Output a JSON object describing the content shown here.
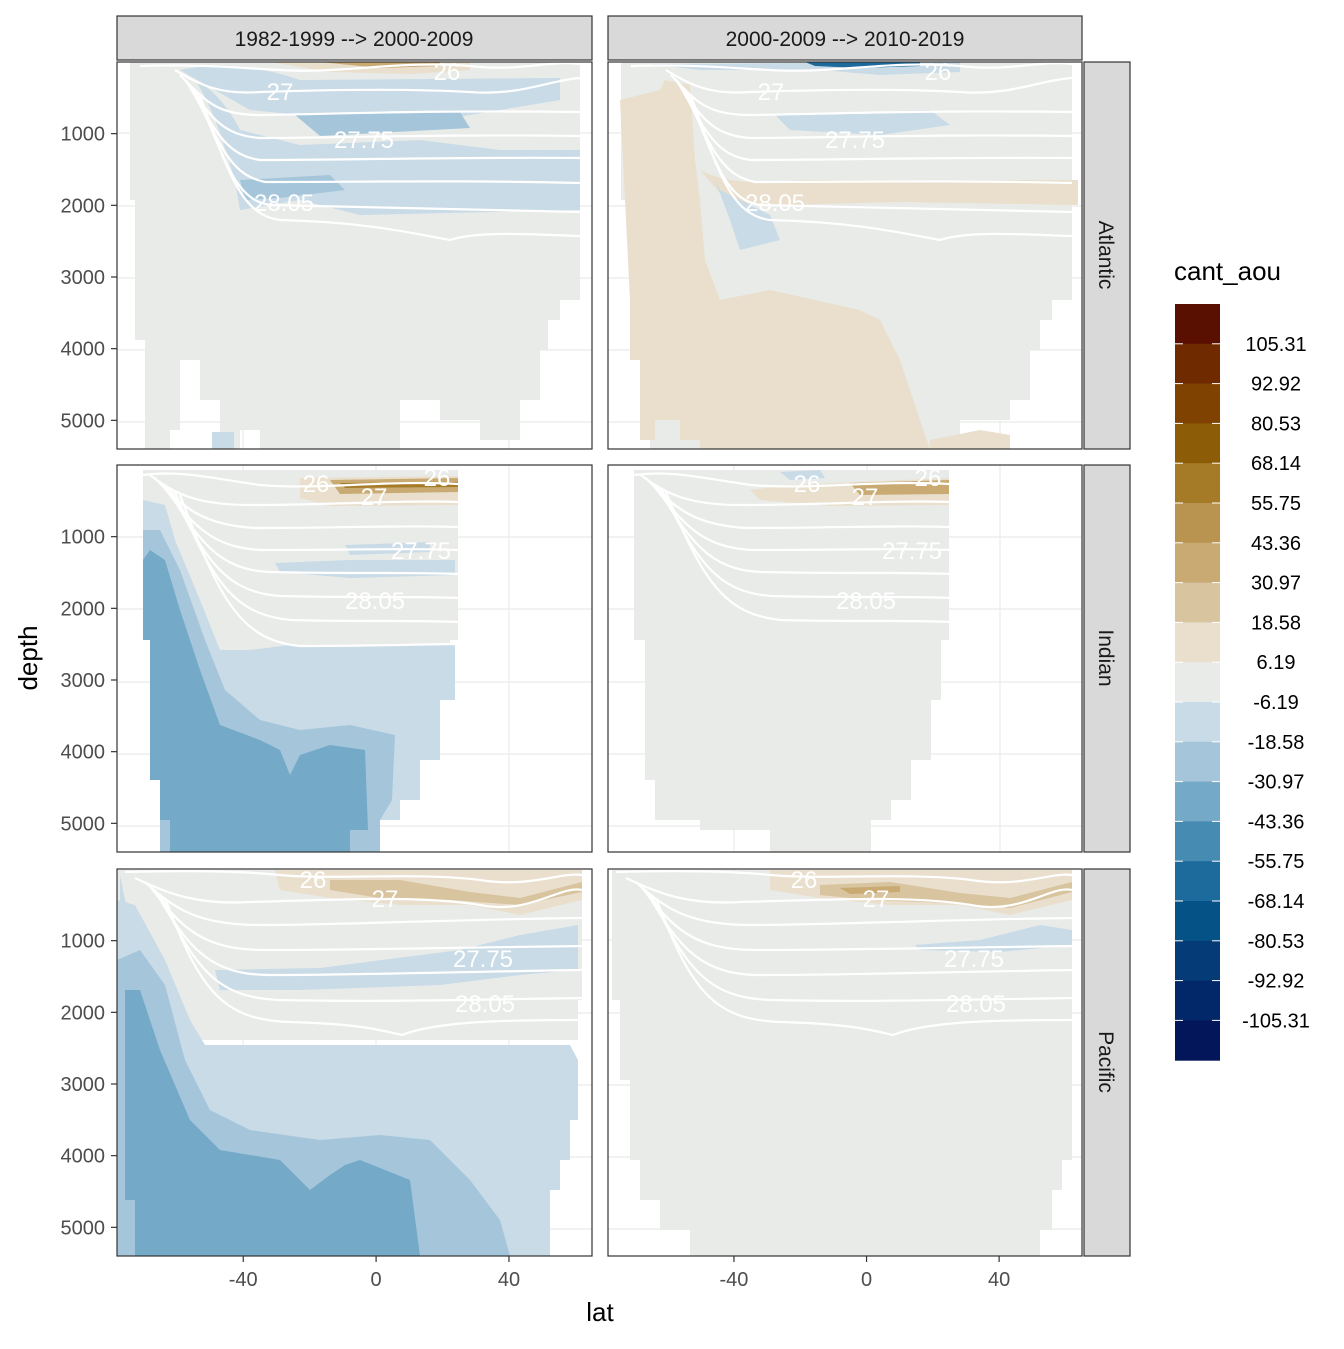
{
  "chart_data": {
    "type": "heatmap",
    "subtype": "faceted ocean section contour plot",
    "xlabel": "lat",
    "ylabel": "depth",
    "x_ticks": [
      -40,
      0,
      40
    ],
    "y_ticks": [
      1000,
      2000,
      3000,
      4000,
      5000
    ],
    "xlim": [
      -78,
      65
    ],
    "ylim": [
      5400,
      0
    ],
    "y_reversed": true,
    "column_facets": [
      "1982-1999 --> 2000-2009",
      "2000-2009 --> 2010-2019"
    ],
    "row_facets": [
      "Atlantic",
      "Indian",
      "Pacific"
    ],
    "legend": {
      "title": "cant_aou",
      "position": "right",
      "breaks": [
        "105.31",
        "92.92",
        "80.53",
        "68.14",
        "55.75",
        "43.36",
        "30.97",
        "18.58",
        "6.19",
        "-6.19",
        "-18.58",
        "-30.97",
        "-43.36",
        "-55.75",
        "-68.14",
        "-80.53",
        "-92.92",
        "-105.31"
      ],
      "colors": [
        "#5a1000",
        "#6f2a00",
        "#7f4200",
        "#8d5c06",
        "#a67b28",
        "#b99450",
        "#c8aa72",
        "#d8c49e",
        "#e9dfcc",
        "#e9ebe8",
        "#c8dbe7",
        "#a5c6da",
        "#74a9c8",
        "#468bb2",
        "#1d6a9d",
        "#055287",
        "#053c78",
        "#02286a",
        "#021659"
      ]
    },
    "density_contours": [
      "26",
      "27",
      "27.75",
      "28.05"
    ],
    "panels": [
      {
        "basin": "Atlantic",
        "period": "1982-1999 --> 2000-2009",
        "contour_labels": [
          "27",
          "26",
          "27.75",
          "28.05"
        ],
        "dominant_class": "-6.19 to 6.19",
        "features": "negative layers (-18.58 to -6.19) at 500-2200 m from 55S to 60N; positive 6.19-30.97 near surface 20S-20N"
      },
      {
        "basin": "Atlantic",
        "period": "2000-2009 --> 2010-2019",
        "contour_labels": [
          "27",
          "26",
          "27.75",
          "28.05"
        ],
        "dominant_class": "6.19 to 18.58",
        "features": "positive 6.19-18.58 in deep southern Atlantic and 1600-2000 m band; negative near surface 15S-20N"
      },
      {
        "basin": "Indian",
        "period": "1982-1999 --> 2000-2009",
        "contour_labels": [
          "26",
          "27",
          "26",
          "27.75",
          "28.05"
        ],
        "dominant_class": "-43.36 to -30.97",
        "features": "strong negative in deep Southern Ocean below 1000 m; positive 18.58-55.75 near surface 10S-25N"
      },
      {
        "basin": "Indian",
        "period": "2000-2009 --> 2010-2019",
        "contour_labels": [
          "26",
          "27",
          "26",
          "27.75",
          "28.05"
        ],
        "dominant_class": "-6.19 to 6.19",
        "features": "weak positive 6.19-30.97 near surface 20S-25N"
      },
      {
        "basin": "Pacific",
        "period": "1982-1999 --> 2000-2009",
        "contour_labels": [
          "26",
          "27",
          "27.75",
          "28.05"
        ],
        "dominant_class": "-18.58 to -6.19",
        "features": "strong negative (down to -43.36) in deep south; positive near surface 30S-60N"
      },
      {
        "basin": "Pacific",
        "period": "2000-2009 --> 2010-2019",
        "contour_labels": [
          "26",
          "27",
          "27.75",
          "28.05"
        ],
        "dominant_class": "-6.19 to 6.19",
        "features": "positive 6.19-43.36 near surface; weak negative around 900 m 15N-60N"
      }
    ]
  }
}
